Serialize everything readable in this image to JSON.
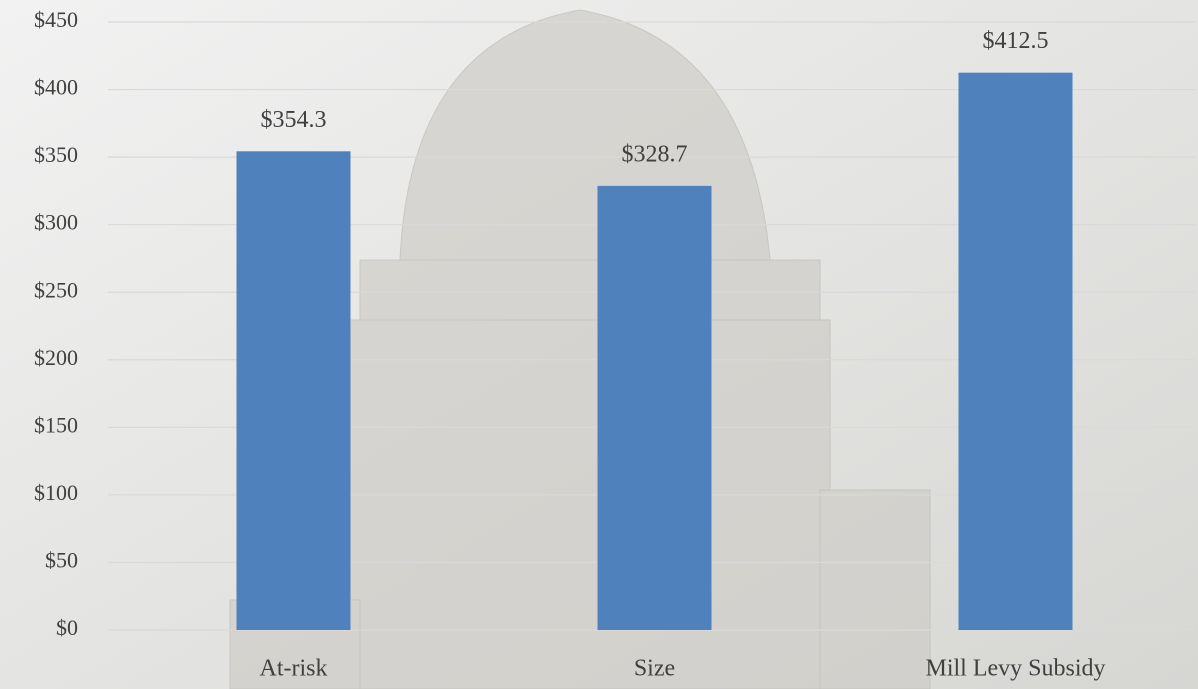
{
  "chart_data": {
    "type": "bar",
    "categories": [
      "At-risk",
      "Size",
      "Mill Levy Subsidy"
    ],
    "values": [
      354.3,
      328.7,
      412.5
    ],
    "value_labels": [
      "$354.3",
      "$328.7",
      "$412.5"
    ],
    "color": "#4f81bd",
    "ylim": [
      0,
      450
    ],
    "yticks": [
      {
        "value": 0,
        "label": "$0"
      },
      {
        "value": 50,
        "label": "$50"
      },
      {
        "value": 100,
        "label": "$100"
      },
      {
        "value": 150,
        "label": "$150"
      },
      {
        "value": 200,
        "label": "$200"
      },
      {
        "value": 250,
        "label": "$250"
      },
      {
        "value": 300,
        "label": "$300"
      },
      {
        "value": 350,
        "label": "$350"
      },
      {
        "value": 400,
        "label": "$400"
      },
      {
        "value": 450,
        "label": "$450"
      }
    ],
    "grid": true
  }
}
